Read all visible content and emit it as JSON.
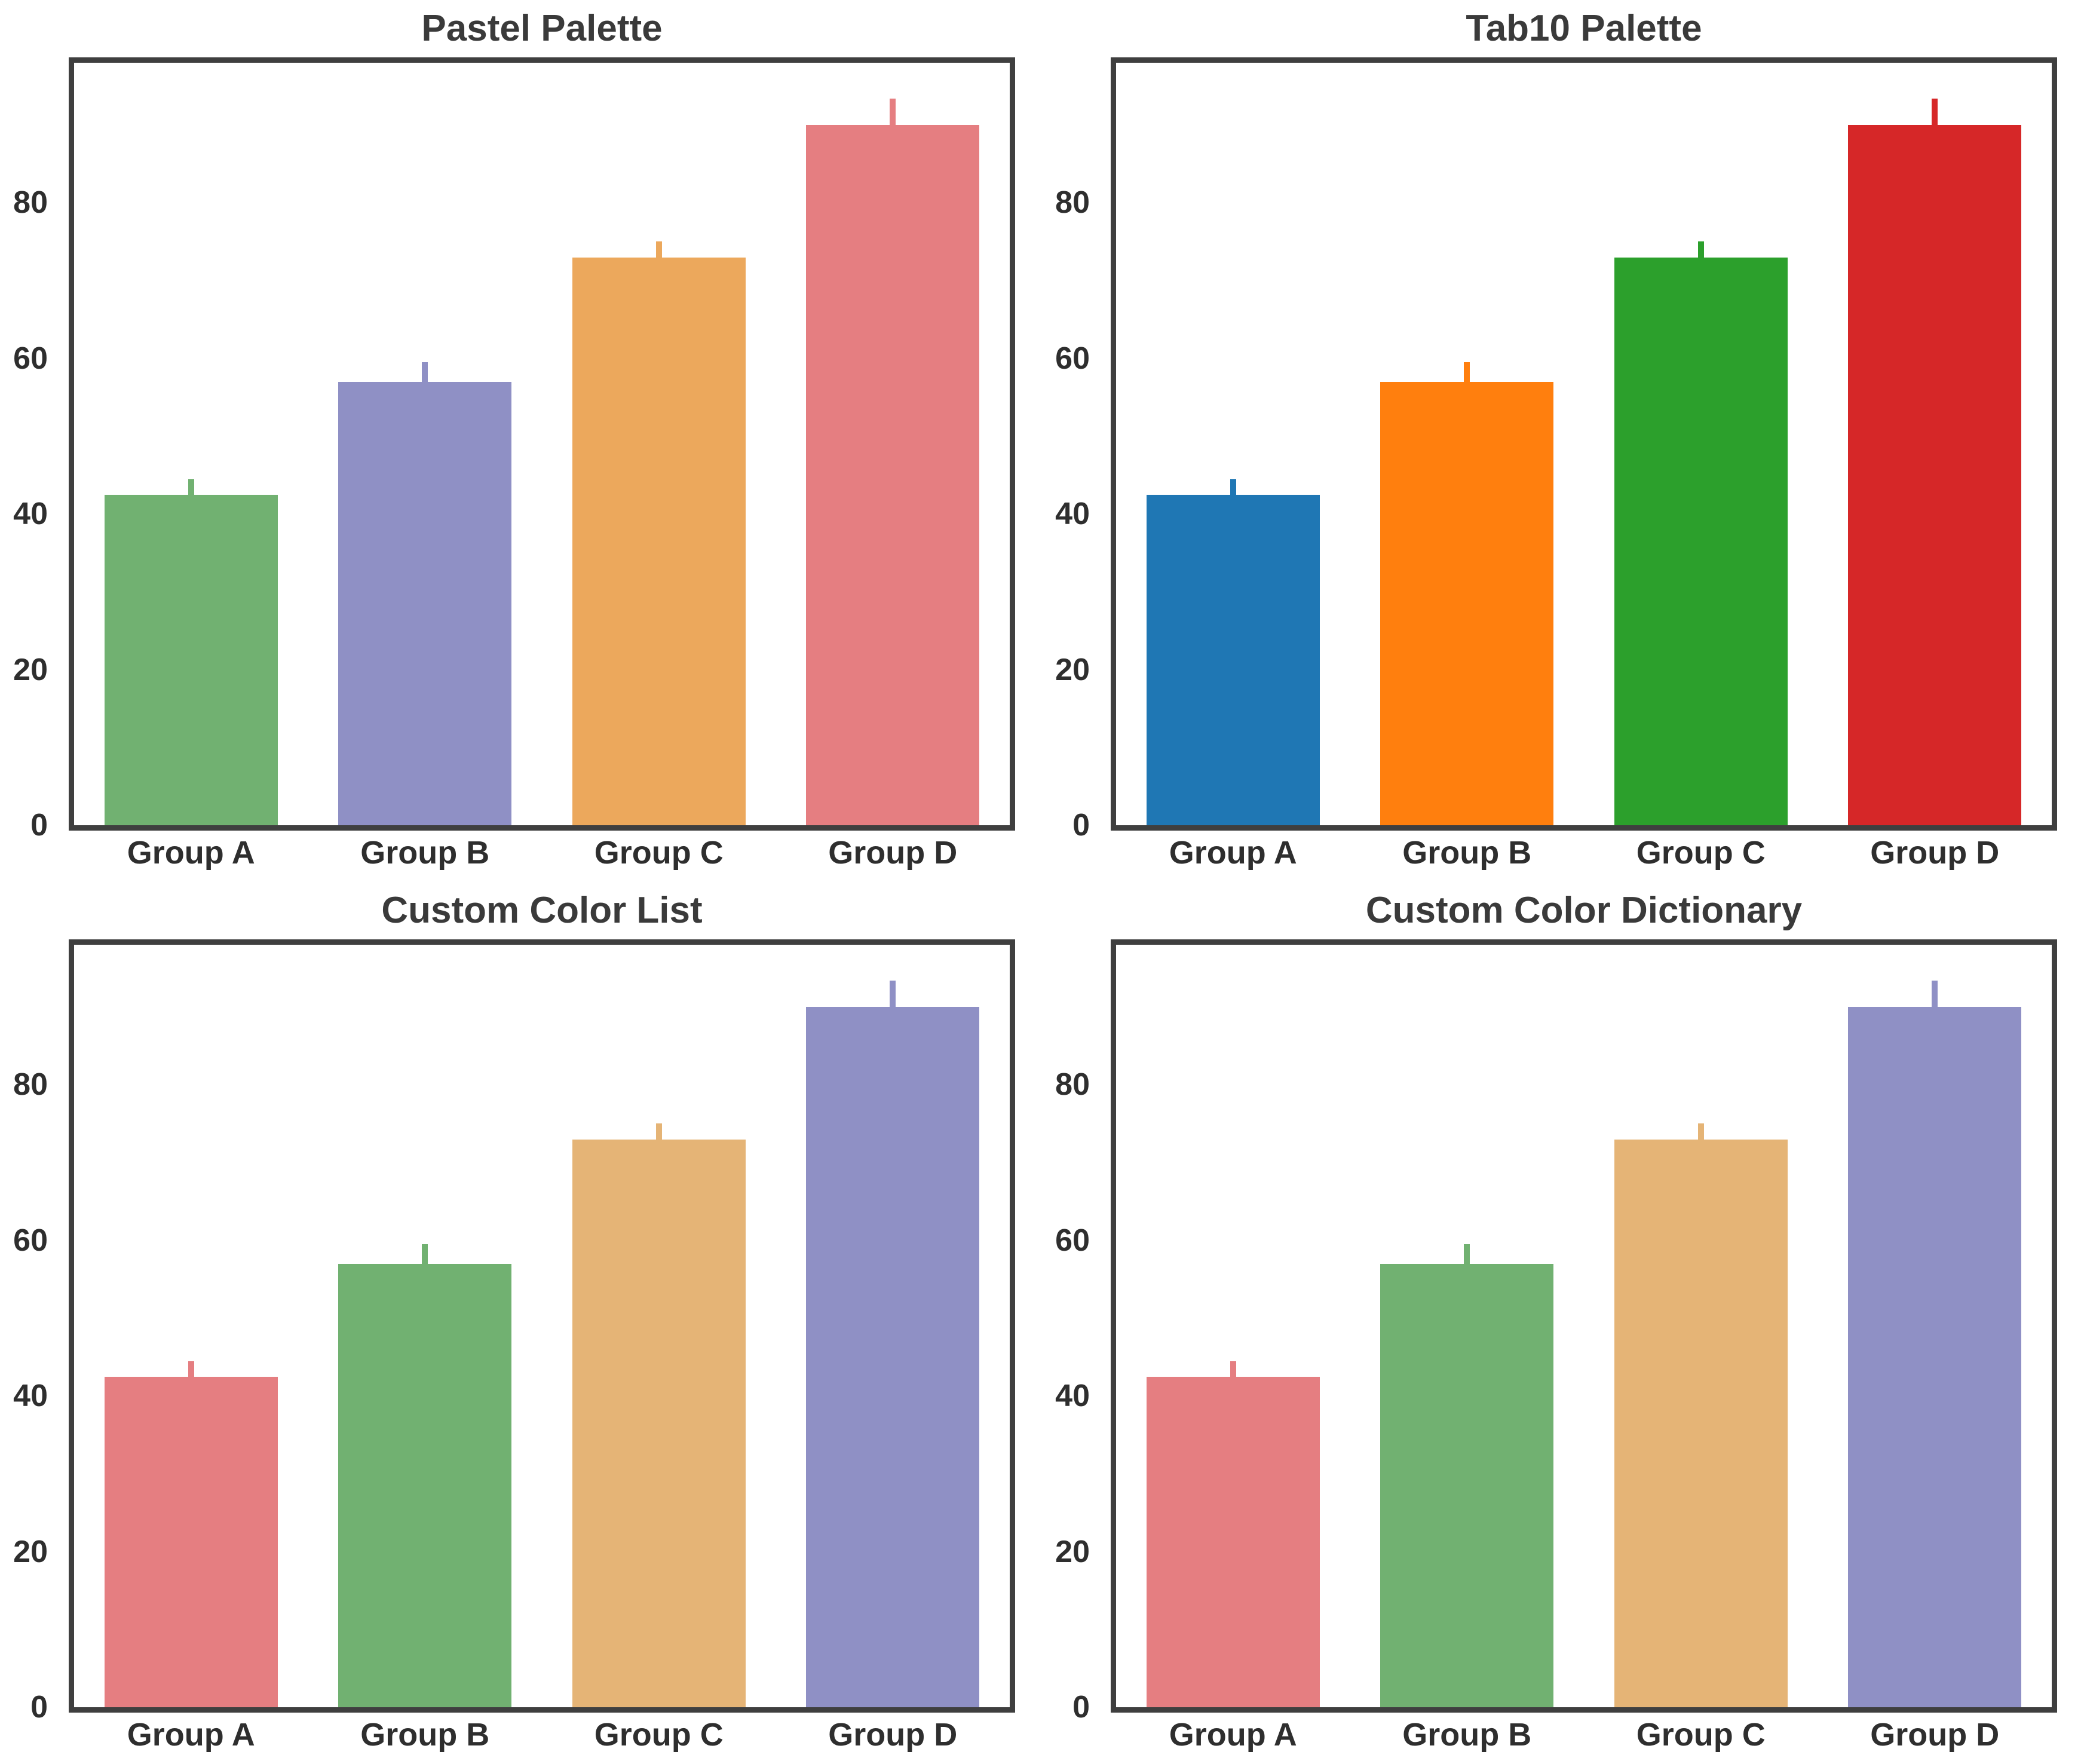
{
  "figure": {
    "background": "#ffffff",
    "spine_color": "#3f3f3f",
    "title_color": "#3a3a3a",
    "tick_label_color": "#2e2e2e"
  },
  "chart_data": [
    {
      "type": "bar",
      "title": "Pastel Palette",
      "categories": [
        "Group A",
        "Group B",
        "Group C",
        "Group D"
      ],
      "values": [
        42.5,
        57,
        73,
        90
      ],
      "errors": [
        2.0,
        2.5,
        2.0,
        3.4
      ],
      "bar_colors": [
        "#71b171",
        "#8f90c5",
        "#eca85c",
        "#e57e81"
      ],
      "xlabel": "",
      "ylabel": "",
      "ylim": [
        0,
        98
      ],
      "yticks": [
        0,
        20,
        40,
        60,
        80
      ],
      "grid": false,
      "legend": "none"
    },
    {
      "type": "bar",
      "title": "Tab10 Palette",
      "categories": [
        "Group A",
        "Group B",
        "Group C",
        "Group D"
      ],
      "values": [
        42.5,
        57,
        73,
        90
      ],
      "errors": [
        2.0,
        2.5,
        2.0,
        3.4
      ],
      "bar_colors": [
        "#1f77b4",
        "#ff7f0e",
        "#2ca02c",
        "#d62728"
      ],
      "xlabel": "",
      "ylabel": "",
      "ylim": [
        0,
        98
      ],
      "yticks": [
        0,
        20,
        40,
        60,
        80
      ],
      "grid": false,
      "legend": "none"
    },
    {
      "type": "bar",
      "title": "Custom Color List",
      "categories": [
        "Group A",
        "Group B",
        "Group C",
        "Group D"
      ],
      "values": [
        42.5,
        57,
        73,
        90
      ],
      "errors": [
        2.0,
        2.5,
        2.0,
        3.4
      ],
      "bar_colors": [
        "#e57e81",
        "#71b171",
        "#e5b476",
        "#8f90c5"
      ],
      "xlabel": "",
      "ylabel": "",
      "ylim": [
        0,
        98
      ],
      "yticks": [
        0,
        20,
        40,
        60,
        80
      ],
      "grid": false,
      "legend": "none"
    },
    {
      "type": "bar",
      "title": "Custom Color Dictionary",
      "categories": [
        "Group A",
        "Group B",
        "Group C",
        "Group D"
      ],
      "values": [
        42.5,
        57,
        73,
        90
      ],
      "errors": [
        2.0,
        2.5,
        2.0,
        3.4
      ],
      "bar_colors": [
        "#e57e81",
        "#71b171",
        "#e5b476",
        "#8f90c5"
      ],
      "xlabel": "",
      "ylabel": "",
      "ylim": [
        0,
        98
      ],
      "yticks": [
        0,
        20,
        40,
        60,
        80
      ],
      "grid": false,
      "legend": "none"
    }
  ]
}
